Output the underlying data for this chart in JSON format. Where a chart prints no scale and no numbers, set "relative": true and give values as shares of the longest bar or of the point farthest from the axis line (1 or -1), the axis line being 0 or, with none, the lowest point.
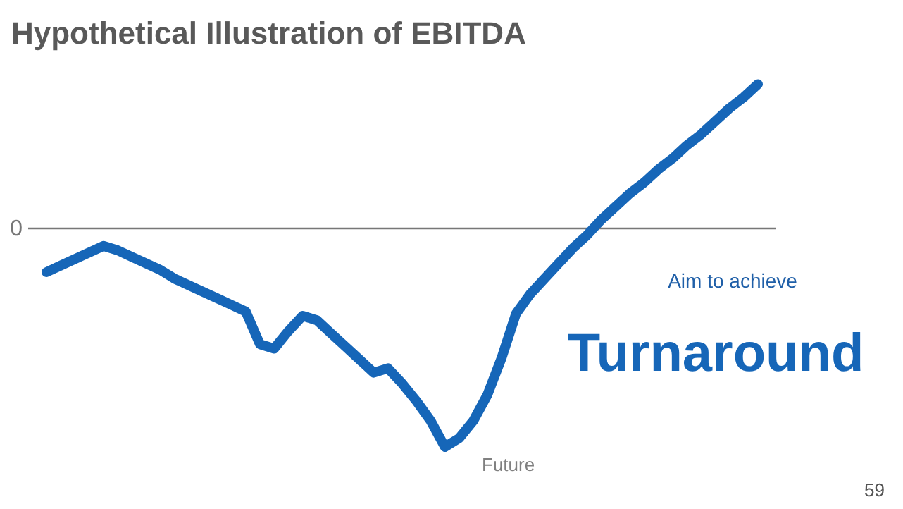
{
  "chart_data": {
    "type": "line",
    "title": "Hypothetical Illustration of EBITDA",
    "relative": true,
    "categories": [
      null,
      null,
      null,
      null,
      null,
      null,
      null,
      null,
      null,
      null,
      null,
      null,
      null,
      null,
      null,
      null,
      null,
      null,
      null,
      null,
      null,
      null,
      null,
      null,
      null,
      null,
      null,
      null,
      null,
      null,
      null,
      null,
      null,
      null,
      null,
      null,
      null,
      null,
      null,
      null,
      null,
      null,
      null,
      null,
      null,
      null,
      null,
      null,
      null,
      null,
      null
    ],
    "series": [
      {
        "color": "#1666b8",
        "values": [
          -0.2,
          -0.17,
          -0.14,
          -0.11,
          -0.08,
          -0.1,
          -0.13,
          -0.16,
          -0.19,
          -0.23,
          -0.26,
          -0.29,
          -0.32,
          -0.35,
          -0.38,
          -0.53,
          -0.55,
          -0.47,
          -0.4,
          -0.42,
          -0.48,
          -0.54,
          -0.6,
          -0.66,
          -0.64,
          -0.71,
          -0.79,
          -0.88,
          -1.0,
          -0.96,
          -0.88,
          -0.76,
          -0.59,
          -0.39,
          -0.3,
          -0.23,
          -0.16,
          -0.09,
          -0.03,
          0.04,
          0.1,
          0.16,
          0.21,
          0.27,
          0.32,
          0.38,
          0.43,
          0.49,
          0.55,
          0.6,
          0.66
        ]
      }
    ],
    "ref_lines": [
      {
        "axis": "y",
        "value": 0,
        "label": "0",
        "color": "#777777"
      }
    ],
    "annotations": [
      "Aim to achieve",
      "Turnaround",
      "Future",
      "59"
    ],
    "line_style": "solid",
    "marker": "none"
  }
}
